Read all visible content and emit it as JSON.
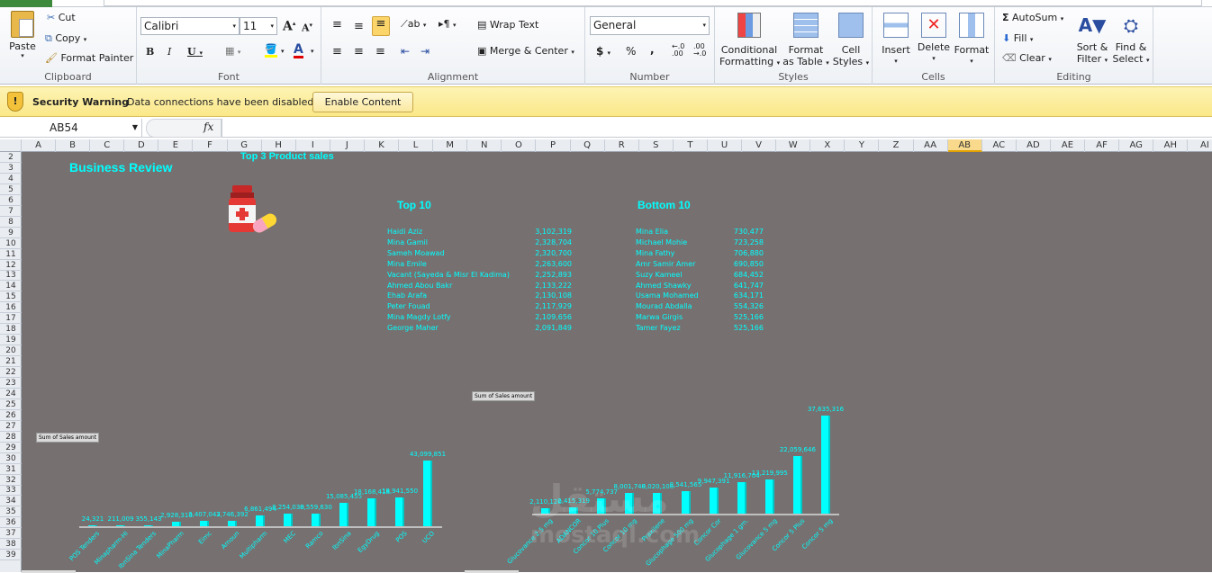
{
  "ribbon": {
    "clipboard": {
      "label": "Clipboard",
      "paste": "Paste",
      "cut": "Cut",
      "copy": "Copy",
      "format_painter": "Format Painter"
    },
    "font": {
      "label": "Font",
      "font_name": "Calibri",
      "font_size": "11",
      "bold": "B",
      "italic": "I",
      "underline": "U"
    },
    "alignment": {
      "label": "Alignment",
      "wrap_text": "Wrap Text",
      "merge_center": "Merge & Center"
    },
    "number": {
      "label": "Number",
      "format": "General",
      "currency": "$",
      "percent": "%",
      "comma": ","
    },
    "styles": {
      "label": "Styles",
      "conditional": [
        "Conditional",
        "Formatting"
      ],
      "format_table": [
        "Format",
        "as Table"
      ],
      "cell_styles": [
        "Cell",
        "Styles"
      ]
    },
    "cells": {
      "label": "Cells",
      "insert": "Insert",
      "delete": "Delete",
      "format": "Format"
    },
    "editing": {
      "label": "Editing",
      "autosum": "AutoSum",
      "fill": "Fill",
      "clear": "Clear",
      "sort": [
        "Sort &",
        "Filter"
      ],
      "find": [
        "Find &",
        "Select"
      ]
    }
  },
  "security": {
    "title": "Security Warning",
    "message": "Data connections have been disabled",
    "button": "Enable Content"
  },
  "formula_bar": {
    "name_box": "AB54",
    "fx": "fx",
    "value": ""
  },
  "columns": [
    "A",
    "B",
    "C",
    "D",
    "E",
    "F",
    "G",
    "H",
    "I",
    "J",
    "K",
    "L",
    "M",
    "N",
    "O",
    "P",
    "Q",
    "R",
    "S",
    "T",
    "U",
    "V",
    "W",
    "X",
    "Y",
    "Z",
    "AA",
    "AB",
    "AC",
    "AD",
    "AE",
    "AF",
    "AG",
    "AH",
    "AI"
  ],
  "selected_column": "AB",
  "rows": [
    "2",
    "3",
    "4",
    "5",
    "6",
    "7",
    "8",
    "9",
    "10",
    "11",
    "12",
    "13",
    "14",
    "15",
    "16",
    "17",
    "18",
    "19",
    "20",
    "21",
    "22",
    "23",
    "24",
    "25",
    "26",
    "27",
    "28",
    "29",
    "30",
    "31",
    "32",
    "33",
    "34",
    "35",
    "36",
    "37",
    "38",
    "39"
  ],
  "sheet": {
    "title": "Business Review",
    "subtitle": "Top  3 Product sales",
    "icon": "medicine-bottle-and-pill",
    "accent": "#00ffff",
    "background": "#767170",
    "top10": {
      "title": "Top 10",
      "items": [
        {
          "name": "Haidi Aziz",
          "value": "3,102,319"
        },
        {
          "name": "Mina Gamil",
          "value": "2,328,704"
        },
        {
          "name": "Sameh Moawad",
          "value": "2,320,700"
        },
        {
          "name": "Mina Emile",
          "value": "2,263,600"
        },
        {
          "name": "Vacant  (Sayeda & Misr El Kadima)",
          "value": "2,252,893"
        },
        {
          "name": "Ahmed Abou Bakr",
          "value": "2,133,222"
        },
        {
          "name": "Ehab Arafa",
          "value": "2,130,108"
        },
        {
          "name": "Peter Fouad",
          "value": "2,117,929"
        },
        {
          "name": "Mina Magdy Lotfy",
          "value": "2,109,656"
        },
        {
          "name": "George  Maher",
          "value": "2,091,849"
        }
      ]
    },
    "bottom10": {
      "title": "Bottom 10",
      "items": [
        {
          "name": "Mina Elia",
          "value": "730,477"
        },
        {
          "name": "Michael Mohie",
          "value": "723,258"
        },
        {
          "name": "Mina Fathy",
          "value": "706,880"
        },
        {
          "name": "Amr Samir Amer",
          "value": "690,850"
        },
        {
          "name": "Suzy Kameel",
          "value": "684,452"
        },
        {
          "name": "Ahmed Shawky",
          "value": "641,747"
        },
        {
          "name": "Usama Mohamed",
          "value": "634,171"
        },
        {
          "name": "Mourad Abdalla",
          "value": "554,326"
        },
        {
          "name": "Marwa Girgis",
          "value": "525,166"
        },
        {
          "name": "Tamer Fayez",
          "value": "525,166"
        }
      ]
    }
  },
  "chart_data": [
    {
      "type": "bar",
      "field_button": "Sum of Sales amount",
      "bar_color": "#00ffff",
      "categories": [
        "POS Tenders",
        "Minapharm-Hi",
        "IbnSina Tenders",
        "MinaPharm",
        "Eimc",
        "Amoun",
        "Multipharm",
        "MEC",
        "Ramco",
        "IbnSina",
        "EgyDrug",
        "POS",
        "UCO"
      ],
      "values": [
        24321,
        211009,
        355143,
        2928310,
        3407042,
        3746392,
        6861494,
        8254030,
        8559630,
        15085455,
        18168418,
        18941550,
        43099851
      ],
      "labels": [
        "24,321",
        "211,009",
        "355,143",
        "2,928,310",
        "3,407,042",
        "3,746,392",
        "6,861,494",
        "8,254,030",
        "8,559,630",
        "15,085,455",
        "18,168,418",
        "18,941,550",
        "43,099,851"
      ]
    },
    {
      "type": "bar",
      "field_button": "Sum of Sales amount",
      "bar_color": "#00ffff",
      "categories": [
        "Glucovance 2.5 mg",
        "ADANCOR",
        "Concor 10 Plus",
        "Concor 10 mg",
        "Praxilene",
        "Glucophage 500 mg",
        "Concor Cor",
        "Glucophage 1 gm.",
        "Glucovance 5 mg",
        "Concor 5 Plus",
        "Concor 5 mg"
      ],
      "values": [
        2110120,
        2415319,
        5774737,
        8001740,
        8020108,
        8541565,
        9947391,
        11916704,
        13219995,
        22059646,
        37635316
      ],
      "labels": [
        "2,110,120",
        "2,415,319",
        "5,774,737",
        "8,001,740",
        "8,020,108",
        "8,541,565",
        "9,947,391",
        "11,916,704",
        "13,219,995",
        "22,059,646",
        "37,635,316"
      ]
    }
  ],
  "watermark": {
    "arabic": "مستقل",
    "latin": "mostaql.com"
  }
}
